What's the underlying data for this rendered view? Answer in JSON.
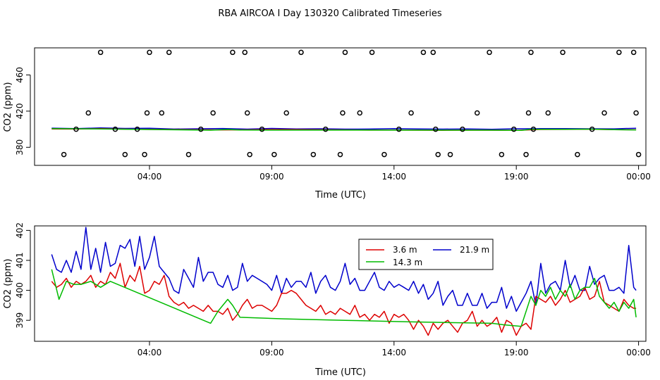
{
  "title": "RBA AIRCOA I  Day 130320  Calibrated Timeseries",
  "colors": {
    "s3_6": "#dd0000",
    "s14_3": "#00bb00",
    "s21_9": "#0000cc"
  },
  "chart_data": [
    {
      "type": "line",
      "xlabel": "Time (UTC)",
      "ylabel": "CO2 (ppm)",
      "xlim": [
        -0.7,
        24.3
      ],
      "ylim": [
        360,
        490
      ],
      "xticks": [
        {
          "value": 4,
          "label": "04:00"
        },
        {
          "value": 9,
          "label": "09:00"
        },
        {
          "value": 14,
          "label": "14:00"
        },
        {
          "value": 19,
          "label": "19:00"
        },
        {
          "value": 24,
          "label": "00:00"
        }
      ],
      "yticks": [
        380,
        420,
        460
      ],
      "series": [
        {
          "key": "s21_9",
          "x": [
            0,
            1,
            2,
            3,
            4,
            5,
            6,
            7,
            8,
            9,
            10,
            11,
            12,
            13,
            14,
            15,
            16,
            17,
            18,
            19,
            20,
            21,
            22,
            23,
            23.9
          ],
          "values": [
            401.2,
            400.6,
            401.5,
            400.9,
            401,
            400.2,
            400.5,
            400.8,
            400.1,
            400.9,
            400.3,
            400.5,
            400.1,
            400.2,
            400.6,
            400.3,
            400.1,
            400.3,
            399.9,
            400.5,
            400.6,
            400.7,
            400.5,
            400.4,
            401.1
          ]
        },
        {
          "key": "s3_6",
          "x": [
            0,
            1,
            2,
            3,
            4,
            5,
            6,
            7,
            8,
            9,
            10,
            11,
            12,
            13,
            14,
            15,
            16,
            17,
            18,
            19,
            20,
            21,
            22,
            23,
            23.9
          ],
          "values": [
            400.3,
            400.2,
            400.6,
            400.1,
            399.8,
            399.6,
            399.4,
            399.2,
            399.3,
            399.7,
            399.6,
            399.4,
            399.2,
            399.0,
            399.1,
            398.9,
            398.8,
            398.9,
            398.9,
            398.8,
            399.7,
            399.8,
            400.0,
            399.5,
            399.4
          ]
        },
        {
          "key": "s14_3",
          "x": [
            0,
            2,
            6.5,
            7.2,
            7.7,
            12,
            18,
            19.2,
            19.6,
            21,
            22,
            23,
            23.9
          ],
          "values": [
            400.7,
            400.3,
            398.9,
            399.7,
            399.1,
            399.0,
            398.9,
            398.8,
            399.9,
            399.9,
            400.1,
            399.5,
            399.2
          ]
        }
      ],
      "calibration_points": {
        "x": [
          0.5,
          1.0,
          1.5,
          2.0,
          2.6,
          3.0,
          3.5,
          3.8,
          3.9,
          4.0,
          4.5,
          4.8,
          5.6,
          6.1,
          6.6,
          7.4,
          7.9,
          8.0,
          8.1,
          8.6,
          9.1,
          9.6,
          10.2,
          10.7,
          11.2,
          11.8,
          11.9,
          12.0,
          12.6,
          13.1,
          13.6,
          14.2,
          14.7,
          15.2,
          15.6,
          15.7,
          15.8,
          16.3,
          16.8,
          17.4,
          17.9,
          18.4,
          18.9,
          19.4,
          19.5,
          19.6,
          19.7,
          20.3,
          20.9,
          21.5,
          22.1,
          22.6,
          23.2,
          23.8,
          23.9,
          24.0
        ],
        "values": [
          372,
          400,
          418,
          485,
          400,
          372,
          400,
          372,
          418,
          485,
          418,
          485,
          372,
          400,
          418,
          485,
          485,
          418,
          372,
          400,
          372,
          418,
          485,
          372,
          400,
          372,
          418,
          485,
          418,
          485,
          372,
          400,
          418,
          485,
          485,
          400,
          372,
          372,
          400,
          418,
          485,
          372,
          400,
          372,
          418,
          485,
          400,
          418,
          485,
          372,
          400,
          418,
          485,
          485,
          418,
          372
        ]
      }
    },
    {
      "type": "line",
      "xlabel": "Time (UTC)",
      "ylabel": "CO2 (ppm)",
      "xlim": [
        -0.7,
        24.3
      ],
      "ylim": [
        398.3,
        402.15
      ],
      "xticks": [
        {
          "value": 4,
          "label": "04:00"
        },
        {
          "value": 9,
          "label": "09:00"
        },
        {
          "value": 14,
          "label": "14:00"
        },
        {
          "value": 19,
          "label": "19:00"
        },
        {
          "value": 24,
          "label": "00:00"
        }
      ],
      "yticks": [
        399,
        400,
        401,
        402
      ],
      "legend": {
        "position": "top-center",
        "entries": [
          {
            "key": "s3_6",
            "label": "3.6 m"
          },
          {
            "key": "s21_9",
            "label": "21.9 m"
          },
          {
            "key": "s14_3",
            "label": "14.3 m"
          }
        ]
      },
      "series": [
        {
          "key": "s21_9",
          "name": "21.9 m",
          "x": [
            0,
            0.2,
            0.4,
            0.6,
            0.8,
            1.0,
            1.2,
            1.4,
            1.6,
            1.8,
            2.0,
            2.2,
            2.4,
            2.6,
            2.8,
            3.0,
            3.2,
            3.4,
            3.6,
            3.8,
            4.0,
            4.2,
            4.4,
            4.6,
            4.8,
            5.0,
            5.2,
            5.4,
            5.6,
            5.8,
            6.0,
            6.2,
            6.4,
            6.6,
            6.8,
            7.0,
            7.2,
            7.4,
            7.6,
            7.8,
            8.0,
            8.2,
            8.4,
            8.6,
            8.8,
            9.0,
            9.2,
            9.4,
            9.6,
            9.8,
            10.0,
            10.2,
            10.4,
            10.6,
            10.8,
            11.0,
            11.2,
            11.4,
            11.6,
            11.8,
            12.0,
            12.2,
            12.4,
            12.6,
            12.8,
            13.0,
            13.2,
            13.4,
            13.6,
            13.8,
            14.0,
            14.2,
            14.4,
            14.6,
            14.8,
            15.0,
            15.2,
            15.4,
            15.6,
            15.8,
            16.0,
            16.2,
            16.4,
            16.6,
            16.8,
            17.0,
            17.2,
            17.4,
            17.6,
            17.8,
            18.0,
            18.2,
            18.4,
            18.6,
            18.8,
            19.0,
            19.2,
            19.4,
            19.6,
            19.8,
            20.0,
            20.2,
            20.4,
            20.6,
            20.8,
            21.0,
            21.2,
            21.4,
            21.6,
            21.8,
            22.0,
            22.2,
            22.4,
            22.6,
            22.8,
            23.0,
            23.2,
            23.4,
            23.6,
            23.8,
            23.9
          ],
          "values": [
            401.2,
            400.7,
            400.6,
            401.0,
            400.6,
            401.3,
            400.7,
            402.1,
            400.7,
            401.4,
            400.6,
            401.6,
            400.8,
            400.9,
            401.5,
            401.4,
            401.7,
            400.8,
            401.8,
            400.7,
            401.1,
            401.8,
            400.8,
            400.6,
            400.4,
            400.0,
            399.9,
            400.7,
            400.4,
            400.1,
            401.1,
            400.3,
            400.6,
            400.6,
            400.2,
            400.1,
            400.5,
            400.0,
            400.1,
            400.9,
            400.3,
            400.5,
            400.4,
            400.3,
            400.2,
            400.0,
            400.5,
            399.9,
            400.4,
            400.1,
            400.3,
            400.3,
            400.1,
            400.6,
            399.9,
            400.3,
            400.5,
            400.1,
            400.0,
            400.3,
            400.9,
            400.2,
            400.4,
            400.0,
            400.0,
            400.3,
            400.6,
            400.1,
            400.0,
            400.3,
            400.1,
            400.2,
            400.1,
            400.0,
            400.3,
            399.9,
            400.2,
            399.7,
            399.9,
            400.3,
            399.5,
            399.8,
            400.0,
            399.5,
            399.5,
            399.9,
            399.5,
            399.5,
            399.9,
            399.4,
            399.6,
            399.6,
            400.1,
            399.4,
            399.8,
            399.3,
            399.6,
            399.9,
            400.3,
            399.5,
            400.9,
            399.9,
            400.2,
            400.3,
            400.0,
            401.0,
            400.1,
            400.5,
            400.0,
            400.0,
            400.8,
            400.2,
            400.4,
            400.5,
            400.0,
            400.0,
            400.1,
            399.9,
            401.5,
            400.1,
            400.0
          ]
        },
        {
          "key": "s3_6",
          "name": "3.6 m",
          "x": [
            0,
            0.2,
            0.4,
            0.6,
            0.8,
            1.0,
            1.2,
            1.4,
            1.6,
            1.8,
            2.0,
            2.2,
            2.4,
            2.6,
            2.8,
            3.0,
            3.2,
            3.4,
            3.6,
            3.8,
            4.0,
            4.2,
            4.4,
            4.6,
            4.8,
            5.0,
            5.2,
            5.4,
            5.6,
            5.8,
            6.0,
            6.2,
            6.4,
            6.6,
            6.8,
            7.0,
            7.2,
            7.4,
            7.6,
            7.8,
            8.0,
            8.2,
            8.4,
            8.6,
            8.8,
            9.0,
            9.2,
            9.4,
            9.6,
            9.8,
            10.0,
            10.2,
            10.4,
            10.6,
            10.8,
            11.0,
            11.2,
            11.4,
            11.6,
            11.8,
            12.0,
            12.2,
            12.4,
            12.6,
            12.8,
            13.0,
            13.2,
            13.4,
            13.6,
            13.8,
            14.0,
            14.2,
            14.4,
            14.6,
            14.8,
            15.0,
            15.2,
            15.4,
            15.6,
            15.8,
            16.0,
            16.2,
            16.4,
            16.6,
            16.8,
            17.0,
            17.2,
            17.4,
            17.6,
            17.8,
            18.0,
            18.2,
            18.4,
            18.6,
            18.8,
            19.0,
            19.2,
            19.4,
            19.6,
            19.8,
            20.0,
            20.2,
            20.4,
            20.6,
            20.8,
            21.0,
            21.2,
            21.4,
            21.6,
            21.8,
            22.0,
            22.2,
            22.4,
            22.6,
            22.8,
            23.0,
            23.2,
            23.4,
            23.6,
            23.8,
            23.9
          ],
          "values": [
            400.3,
            400.1,
            400.2,
            400.4,
            400.1,
            400.3,
            400.2,
            400.3,
            400.5,
            400.1,
            400.3,
            400.2,
            400.6,
            400.4,
            400.9,
            400.1,
            400.5,
            400.3,
            400.8,
            399.9,
            400.0,
            400.3,
            400.2,
            400.5,
            399.8,
            399.6,
            399.5,
            399.6,
            399.4,
            399.5,
            399.4,
            399.3,
            399.5,
            399.3,
            399.3,
            399.2,
            399.4,
            399.0,
            399.2,
            399.5,
            399.7,
            399.4,
            399.5,
            399.5,
            399.4,
            399.3,
            399.5,
            399.9,
            399.9,
            400.0,
            399.9,
            399.7,
            399.5,
            399.4,
            399.3,
            399.5,
            399.2,
            399.3,
            399.2,
            399.4,
            399.3,
            399.2,
            399.5,
            399.1,
            399.2,
            399.0,
            399.2,
            399.1,
            399.3,
            398.9,
            399.2,
            399.1,
            399.2,
            399.0,
            398.7,
            399.0,
            398.8,
            398.5,
            398.9,
            398.7,
            398.9,
            399.0,
            398.8,
            398.6,
            398.9,
            399.0,
            399.3,
            398.8,
            399.0,
            398.8,
            398.9,
            399.1,
            398.6,
            399.0,
            398.9,
            398.5,
            398.8,
            398.9,
            398.7,
            399.8,
            399.7,
            399.6,
            399.8,
            399.5,
            399.7,
            400.0,
            399.6,
            399.7,
            399.8,
            400.1,
            399.7,
            399.8,
            400.3,
            399.6,
            399.5,
            399.4,
            399.3,
            399.7,
            399.5,
            399.4,
            399.4
          ]
        },
        {
          "key": "s14_3",
          "name": "14.3 m",
          "x": [
            0,
            0.3,
            0.6,
            0.9,
            1.2,
            1.6,
            2.0,
            2.4,
            6.5,
            6.8,
            7.0,
            7.2,
            7.4,
            7.7,
            9.5,
            12.0,
            14.5,
            18.0,
            18.5,
            19.2,
            19.4,
            19.6,
            19.8,
            20.0,
            20.2,
            20.4,
            20.6,
            20.8,
            21.0,
            21.2,
            21.4,
            21.6,
            21.8,
            22.0,
            22.2,
            22.4,
            22.6,
            22.8,
            23.0,
            23.2,
            23.4,
            23.6,
            23.8,
            23.9
          ],
          "values": [
            400.7,
            399.7,
            400.3,
            400.2,
            400.2,
            400.3,
            400.1,
            400.3,
            398.9,
            399.3,
            399.5,
            399.7,
            399.5,
            399.1,
            399.05,
            399.0,
            398.95,
            398.9,
            398.85,
            398.8,
            399.3,
            399.8,
            399.5,
            400.0,
            399.8,
            400.1,
            399.7,
            400.0,
            399.8,
            400.2,
            399.7,
            400.0,
            400.1,
            400.1,
            400.4,
            399.8,
            399.6,
            399.4,
            399.6,
            399.3,
            399.6,
            399.4,
            399.7,
            399.1
          ]
        }
      ]
    }
  ]
}
